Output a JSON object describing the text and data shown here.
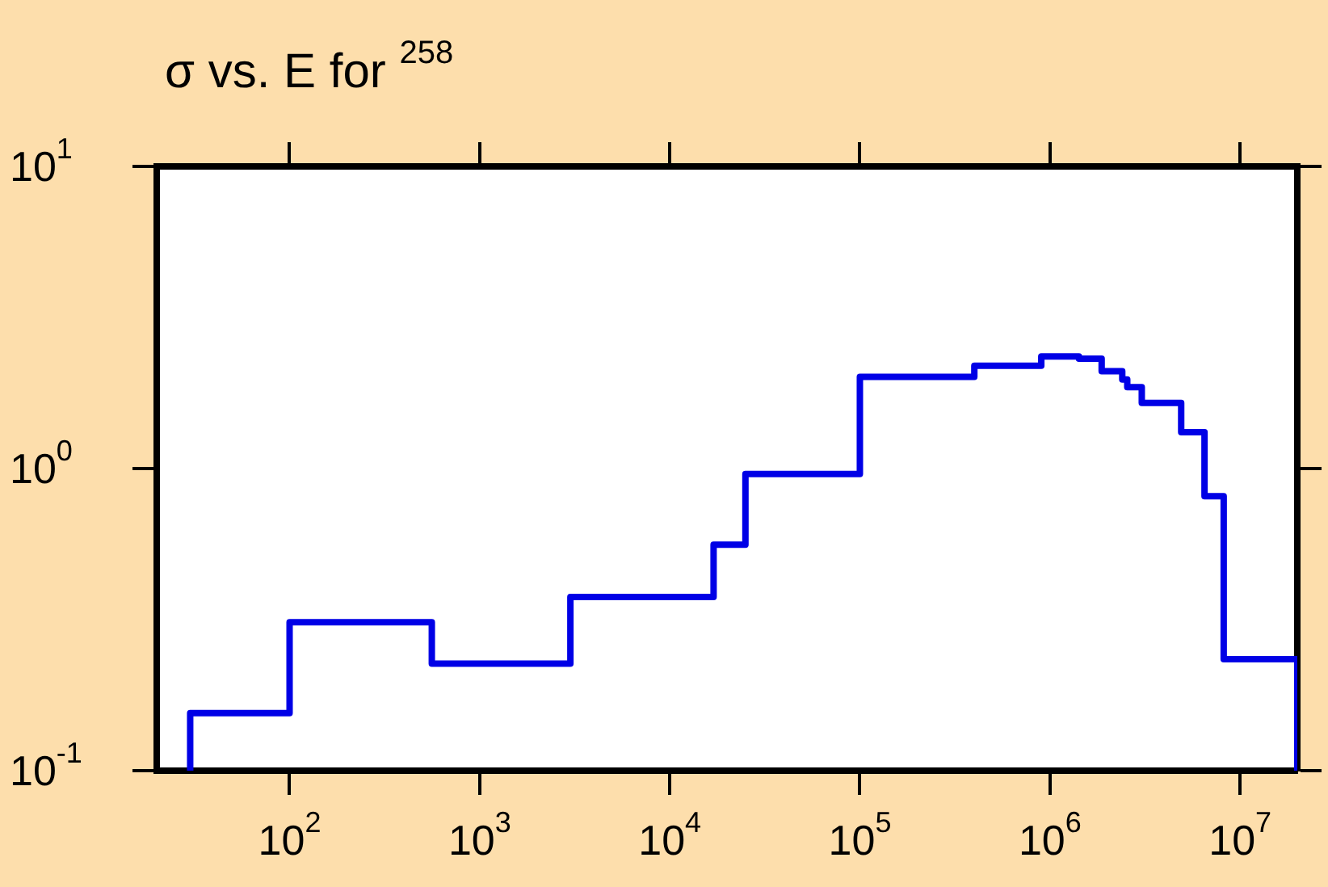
{
  "chart_data": {
    "type": "step",
    "title": "σ vs. E for $^{258}$",
    "log": "xy",
    "xlim": [
      20,
      20000000
    ],
    "ylim": [
      0.1,
      10
    ],
    "xticks": [
      {
        "value": 100,
        "label": "10$^{2}$"
      },
      {
        "value": 1000,
        "label": "10$^{3}$"
      },
      {
        "value": 10000,
        "label": "10$^{4}$"
      },
      {
        "value": 100000,
        "label": "10$^{5}$"
      },
      {
        "value": 1000000,
        "label": "10$^{6}$"
      },
      {
        "value": 10000000,
        "label": "10$^{7}$"
      }
    ],
    "yticks": [
      {
        "value": 0.1,
        "label": "10$^{-1}$"
      },
      {
        "value": 1,
        "label": "10$^{0}$"
      },
      {
        "value": 10,
        "label": "10$^{1}$"
      }
    ],
    "grid": false,
    "legend": false,
    "marker": "none",
    "line_style": "solid",
    "series": [
      {
        "color": "#0000e6",
        "x": [
          30,
          30,
          100,
          560,
          3000,
          17000,
          25000,
          100000,
          400000,
          900000,
          1420000,
          1870000,
          2400000,
          2550000,
          3040000,
          4900000,
          6500000,
          8200000,
          20000000,
          20000000
        ],
        "values": [
          0.1,
          0.155,
          0.31,
          0.226,
          0.376,
          0.56,
          0.96,
          2.01,
          2.19,
          2.35,
          2.31,
          2.1,
          1.97,
          1.86,
          1.65,
          1.32,
          0.81,
          0.234,
          0.234,
          0.1
        ]
      }
    ]
  }
}
